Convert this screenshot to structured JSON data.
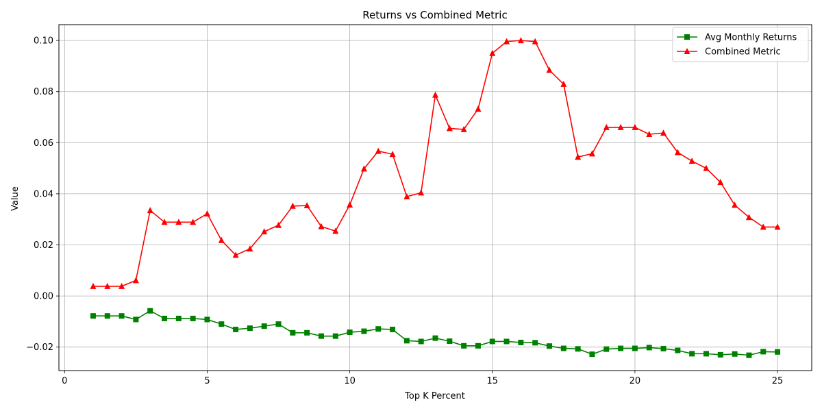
{
  "chart_data": {
    "type": "line",
    "title": "Returns vs Combined Metric",
    "xlabel": "Top K Percent",
    "ylabel": "Value",
    "xlim": [
      -0.2,
      26.2
    ],
    "ylim": [
      -0.0292,
      0.1062
    ],
    "grid": true,
    "legend_position": "top-right",
    "x_ticks": [
      0,
      5,
      10,
      15,
      20,
      25
    ],
    "x_tick_labels": [
      "0",
      "5",
      "10",
      "15",
      "20",
      "25"
    ],
    "y_ticks": [
      -0.02,
      0.0,
      0.02,
      0.04,
      0.06,
      0.08,
      0.1
    ],
    "y_tick_labels": [
      "−0.02",
      "0.00",
      "0.02",
      "0.04",
      "0.06",
      "0.08",
      "0.10"
    ],
    "x": [
      1,
      1.5,
      2,
      2.5,
      3,
      3.5,
      4,
      4.5,
      5,
      5.5,
      6,
      6.5,
      7,
      7.5,
      8,
      8.5,
      9,
      9.5,
      10,
      10.5,
      11,
      11.5,
      12,
      12.5,
      13,
      13.5,
      14,
      14.5,
      15,
      15.5,
      16,
      16.5,
      17,
      17.5,
      18,
      18.5,
      19,
      19.5,
      20,
      20.5,
      21,
      21.5,
      22,
      22.5,
      23,
      23.5,
      24,
      24.5,
      25
    ],
    "series": [
      {
        "name": "Avg Monthly Returns",
        "color": "#008000",
        "marker": "square",
        "values": [
          -0.0078,
          -0.0078,
          -0.0078,
          -0.0092,
          -0.0058,
          -0.0088,
          -0.0088,
          -0.0088,
          -0.0092,
          -0.011,
          -0.0131,
          -0.0126,
          -0.0118,
          -0.011,
          -0.0144,
          -0.0144,
          -0.0157,
          -0.0157,
          -0.0142,
          -0.0138,
          -0.0129,
          -0.0131,
          -0.0175,
          -0.0178,
          -0.0165,
          -0.0177,
          -0.0195,
          -0.0195,
          -0.0178,
          -0.0178,
          -0.0182,
          -0.0183,
          -0.0196,
          -0.0205,
          -0.0207,
          -0.0228,
          -0.0208,
          -0.0205,
          -0.0205,
          -0.0202,
          -0.0206,
          -0.0213,
          -0.0226,
          -0.0226,
          -0.023,
          -0.0227,
          -0.0232,
          -0.0218,
          -0.0219
        ]
      },
      {
        "name": "Combined Metric",
        "color": "#ff0000",
        "marker": "triangle",
        "values": [
          0.0038,
          0.0038,
          0.0038,
          0.0061,
          0.0335,
          0.0289,
          0.0289,
          0.0289,
          0.0322,
          0.0218,
          0.016,
          0.0185,
          0.0252,
          0.0277,
          0.0352,
          0.0354,
          0.0272,
          0.0254,
          0.0357,
          0.0498,
          0.0567,
          0.0555,
          0.0389,
          0.0404,
          0.0787,
          0.0656,
          0.0652,
          0.0732,
          0.095,
          0.0996,
          0.1,
          0.0996,
          0.0884,
          0.0829,
          0.0544,
          0.0557,
          0.066,
          0.066,
          0.066,
          0.0633,
          0.0638,
          0.0562,
          0.0528,
          0.05,
          0.0445,
          0.0356,
          0.0308,
          0.027,
          0.027
        ]
      }
    ]
  }
}
